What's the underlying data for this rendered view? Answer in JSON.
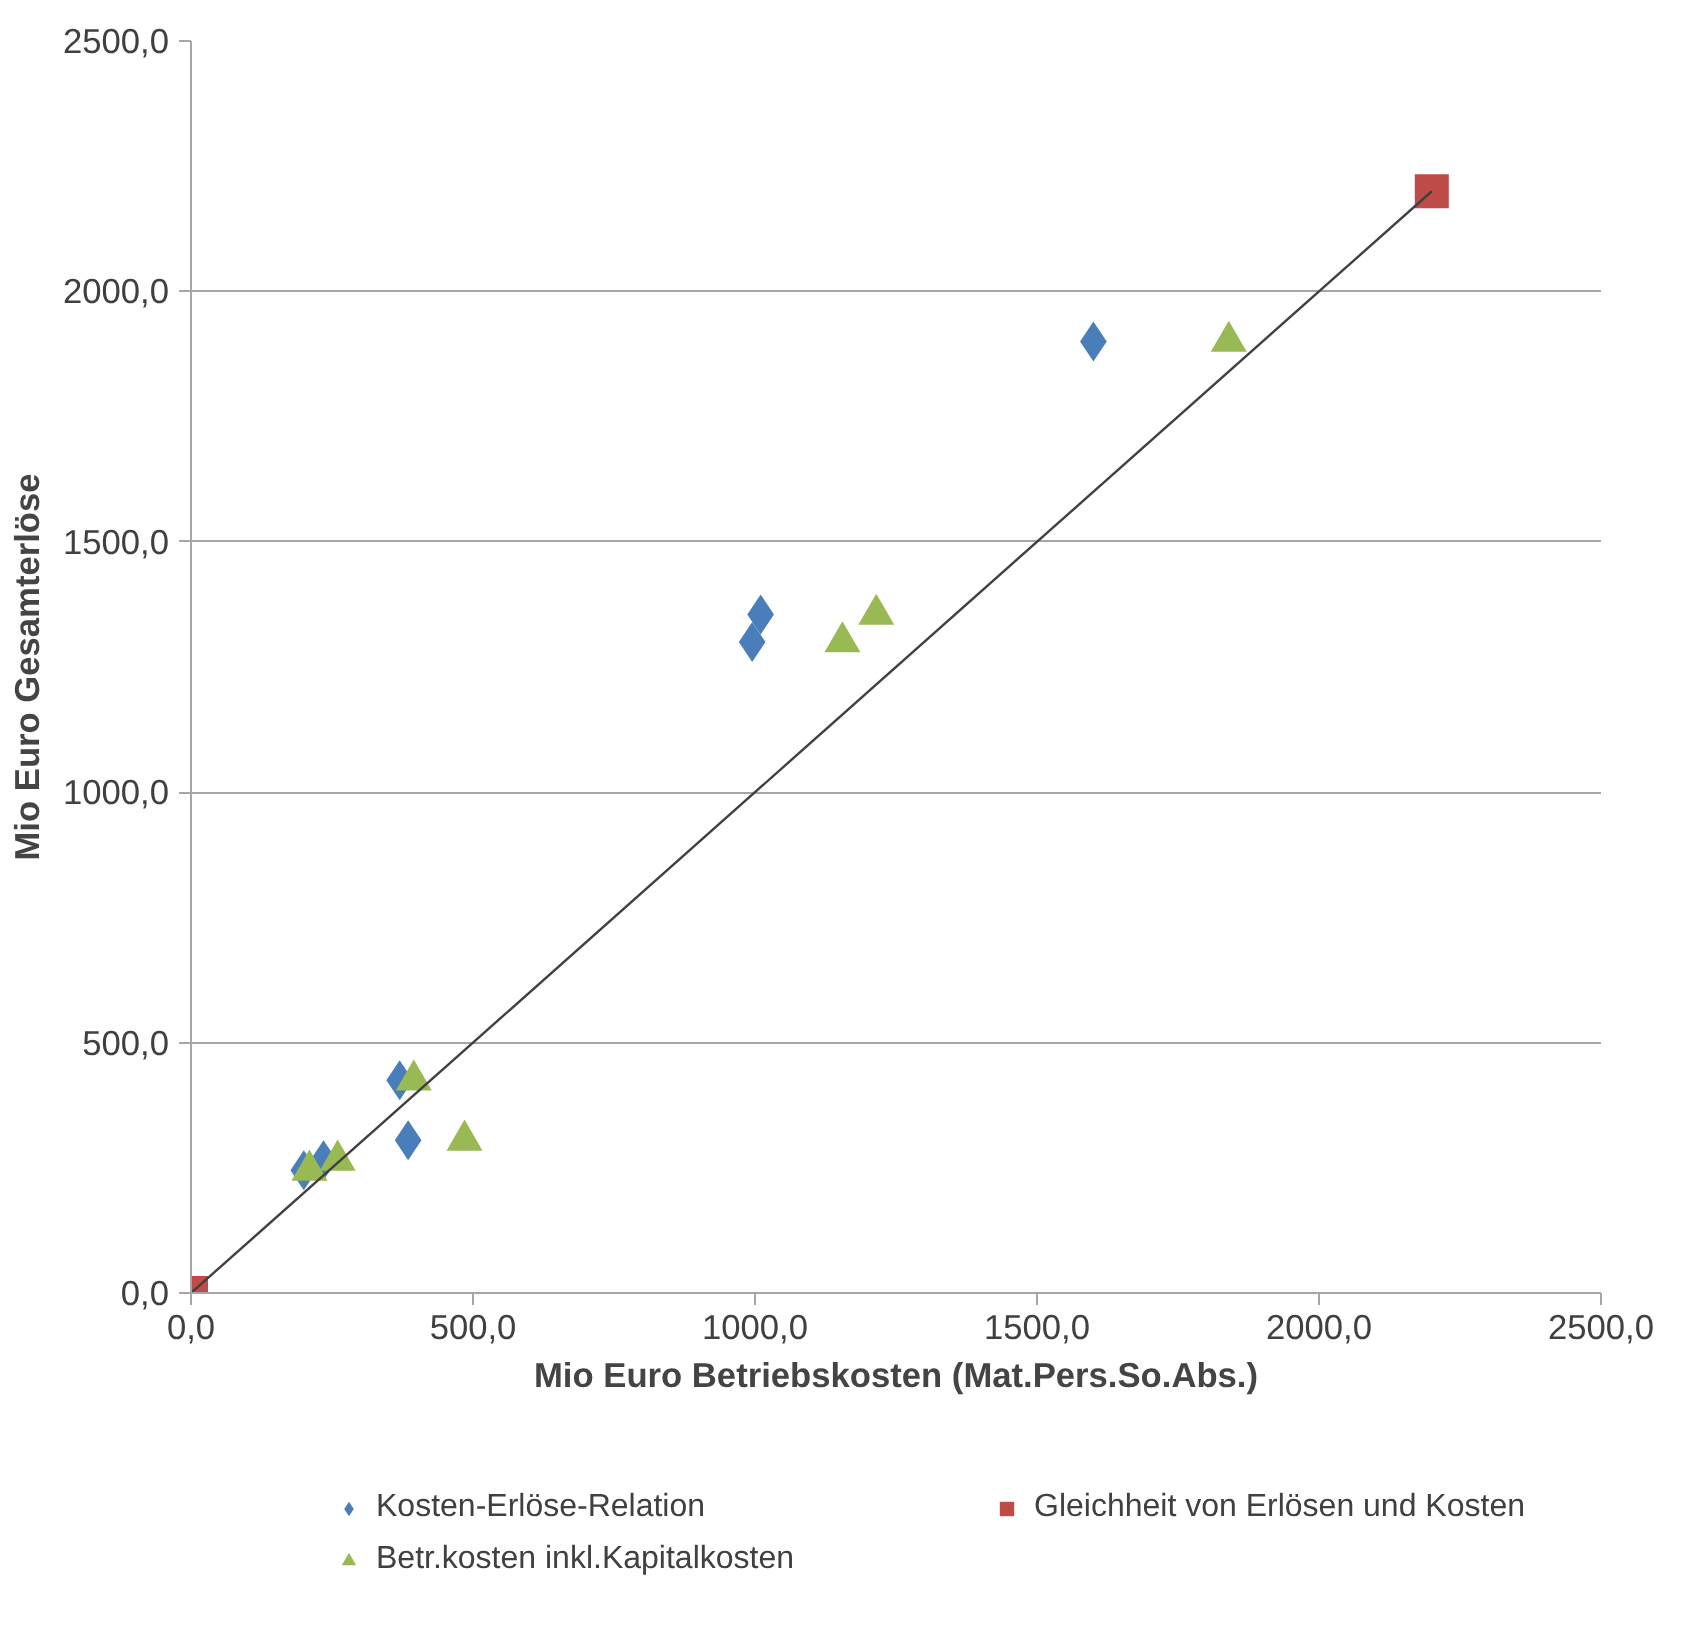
{
  "chart_data": {
    "type": "scatter",
    "xlabel": "Mio Euro Betriebskosten (Mat.Pers.So.Abs.)",
    "ylabel": "Mio Euro Gesamterlöse",
    "xlim": [
      0,
      2500
    ],
    "ylim": [
      0,
      2500
    ],
    "xticks": [
      {
        "value": 0,
        "label": "0,0"
      },
      {
        "value": 500,
        "label": "500,0"
      },
      {
        "value": 1000,
        "label": "1000,0"
      },
      {
        "value": 1500,
        "label": "1500,0"
      },
      {
        "value": 2000,
        "label": "2000,0"
      },
      {
        "value": 2500,
        "label": "2500,0"
      }
    ],
    "yticks": [
      {
        "value": 0,
        "label": "0,0"
      },
      {
        "value": 500,
        "label": "500,0"
      },
      {
        "value": 1000,
        "label": "1000,0"
      },
      {
        "value": 1500,
        "label": "1500,0"
      },
      {
        "value": 2000,
        "label": "2000,0"
      },
      {
        "value": 2500,
        "label": "2500,0"
      }
    ],
    "grid": "y",
    "legend": "bottom",
    "series": [
      {
        "name": "Kosten-Erlöse-Relation",
        "color": "#4a7ebb",
        "marker": "diamond",
        "x": [
          1600,
          1010,
          995,
          370,
          385,
          200,
          235
        ],
        "values": [
          1900,
          1355,
          1300,
          425,
          305,
          245,
          265
        ]
      },
      {
        "name": "Gleichheit von Erlösen und Kosten",
        "color": "#be4b48",
        "marker": "square",
        "x": [
          0,
          2200
        ],
        "values": [
          0,
          2200
        ]
      },
      {
        "name": "Betr.kosten inkl.Kapitalkosten",
        "color": "#98b954",
        "marker": "triangle",
        "x": [
          1840,
          1215,
          1155,
          395,
          485,
          210,
          260
        ],
        "values": [
          1900,
          1355,
          1300,
          425,
          305,
          245,
          265
        ]
      },
      {
        "type": "line",
        "color": "#404040",
        "marker": "none",
        "x": [
          0,
          2200
        ],
        "values": [
          0,
          2200
        ]
      }
    ]
  }
}
